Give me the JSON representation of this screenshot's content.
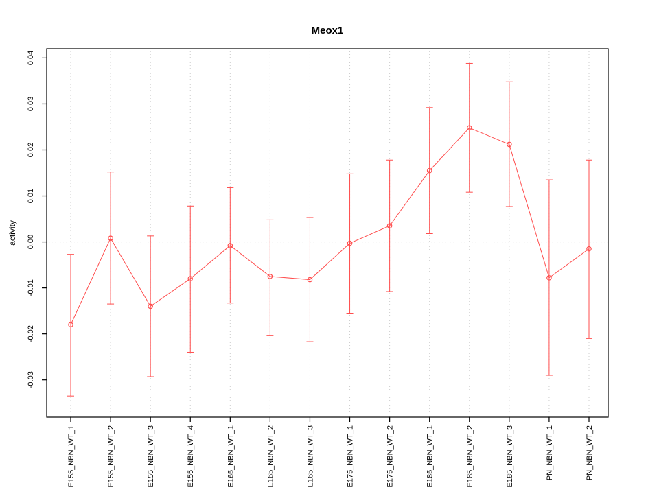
{
  "chart_data": {
    "type": "line",
    "title": "Meox1",
    "xlabel": "",
    "ylabel": "activity",
    "legend": "none",
    "grid": "dotted vertical gridlines at each category; dotted horizontal line at y=0",
    "series_color": "#ff4d4d",
    "grid_color": "#cccccc",
    "axis_color": "#000000",
    "ylim": [
      -0.0381,
      0.042
    ],
    "yticks": [
      -0.03,
      -0.02,
      -0.01,
      0,
      0.01,
      0.02,
      0.03,
      0.04
    ],
    "ytick_labels": [
      "-0.03",
      "-0.02",
      "-0.01",
      "0.00",
      "0.01",
      "0.02",
      "0.03",
      "0.04"
    ],
    "categories": [
      "E155_NBN_WT_1",
      "E155_NBN_WT_2",
      "E155_NBN_WT_3",
      "E155_NBN_WT_4",
      "E165_NBN_WT_1",
      "E165_NBN_WT_2",
      "E165_NBN_WT_3",
      "E175_NBN_WT_1",
      "E175_NBN_WT_2",
      "E185_NBN_WT_1",
      "E185_NBN_WT_2",
      "E185_NBN_WT_3",
      "PN_NBN_WT_1",
      "PN_NBN_WT_2"
    ],
    "series": [
      {
        "name": "activity",
        "means": [
          -0.018,
          0.0008,
          -0.014,
          -0.008,
          -0.0008,
          -0.0075,
          -0.0082,
          -0.0003,
          0.0035,
          0.0155,
          0.0248,
          0.0212,
          -0.0078,
          -0.0015
        ],
        "lower": [
          -0.0335,
          -0.0135,
          -0.0293,
          -0.024,
          -0.0133,
          -0.0203,
          -0.0217,
          -0.0155,
          -0.0108,
          0.0018,
          0.0108,
          0.0077,
          -0.029,
          -0.021
        ],
        "upper": [
          -0.0027,
          0.0152,
          0.0013,
          0.0078,
          0.0118,
          0.0048,
          0.0053,
          0.0148,
          0.0178,
          0.0292,
          0.0388,
          0.0348,
          0.0135,
          0.0178
        ]
      }
    ]
  }
}
